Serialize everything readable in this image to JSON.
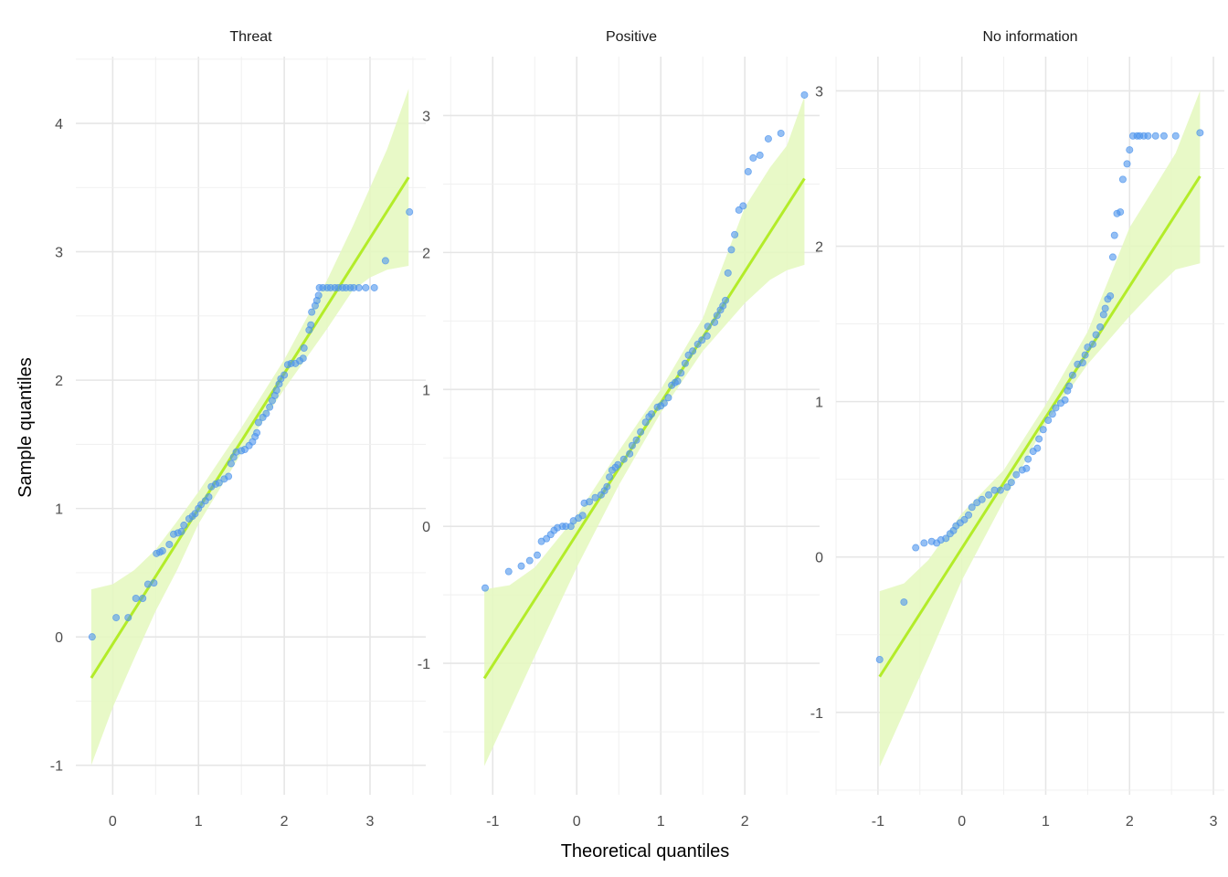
{
  "chart_data": {
    "type": "scatter",
    "subtype": "qq-plot faceted",
    "xlabel": "Theoretical quantiles",
    "ylabel": "Sample quantiles",
    "colors": {
      "points": "#4d94ec",
      "line": "#b3ec29",
      "band": "#e4f8bd",
      "grid": "#e6e6e6"
    },
    "grid": true,
    "panels": [
      {
        "title": "Threat",
        "xlim": [
          -0.43,
          3.65
        ],
        "ylim": [
          -1.23,
          4.52
        ],
        "xticks": [
          0,
          1,
          2,
          3
        ],
        "xtick_labels": [
          "0",
          "1",
          "2",
          "3"
        ],
        "yticks": [
          -1,
          0,
          1,
          2,
          3,
          4
        ],
        "ytick_labels": [
          "-1",
          "0",
          "1",
          "2",
          "3",
          "4"
        ],
        "line": {
          "x": [
            -0.25,
            3.45
          ],
          "slope": 1.054,
          "intercept": -0.056
        },
        "band": {
          "x": [
            -0.25,
            0,
            0.25,
            0.5,
            0.75,
            1,
            1.5,
            2,
            2.5,
            2.8,
            3,
            3.2,
            3.45
          ],
          "hi": [
            0.37,
            0.41,
            0.52,
            0.68,
            0.9,
            1.13,
            1.63,
            2.16,
            2.78,
            3.2,
            3.5,
            3.8,
            4.27
          ],
          "lo": [
            -1.0,
            -0.55,
            -0.17,
            0.2,
            0.52,
            0.88,
            1.43,
            1.93,
            2.4,
            2.7,
            2.8,
            2.86,
            2.89
          ]
        },
        "points": [
          [
            -0.24,
            0.0
          ],
          [
            0.04,
            0.15
          ],
          [
            0.18,
            0.15
          ],
          [
            0.27,
            0.3
          ],
          [
            0.35,
            0.3
          ],
          [
            0.41,
            0.41
          ],
          [
            0.48,
            0.42
          ],
          [
            0.51,
            0.65
          ],
          [
            0.55,
            0.66
          ],
          [
            0.58,
            0.67
          ],
          [
            0.66,
            0.72
          ],
          [
            0.71,
            0.8
          ],
          [
            0.76,
            0.81
          ],
          [
            0.8,
            0.82
          ],
          [
            0.83,
            0.87
          ],
          [
            0.89,
            0.92
          ],
          [
            0.93,
            0.94
          ],
          [
            0.96,
            0.96
          ],
          [
            1.0,
            1.0
          ],
          [
            1.03,
            1.03
          ],
          [
            1.08,
            1.06
          ],
          [
            1.12,
            1.09
          ],
          [
            1.15,
            1.17
          ],
          [
            1.2,
            1.19
          ],
          [
            1.24,
            1.2
          ],
          [
            1.3,
            1.23
          ],
          [
            1.35,
            1.25
          ],
          [
            1.38,
            1.35
          ],
          [
            1.41,
            1.4
          ],
          [
            1.44,
            1.44
          ],
          [
            1.5,
            1.45
          ],
          [
            1.54,
            1.46
          ],
          [
            1.59,
            1.49
          ],
          [
            1.63,
            1.52
          ],
          [
            1.66,
            1.56
          ],
          [
            1.68,
            1.59
          ],
          [
            1.7,
            1.67
          ],
          [
            1.75,
            1.71
          ],
          [
            1.79,
            1.74
          ],
          [
            1.83,
            1.79
          ],
          [
            1.86,
            1.84
          ],
          [
            1.89,
            1.88
          ],
          [
            1.91,
            1.92
          ],
          [
            1.94,
            1.97
          ],
          [
            1.96,
            2.01
          ],
          [
            2.0,
            2.04
          ],
          [
            2.04,
            2.12
          ],
          [
            2.08,
            2.13
          ],
          [
            2.13,
            2.13
          ],
          [
            2.18,
            2.15
          ],
          [
            2.22,
            2.17
          ],
          [
            2.23,
            2.25
          ],
          [
            2.29,
            2.39
          ],
          [
            2.31,
            2.43
          ],
          [
            2.32,
            2.53
          ],
          [
            2.36,
            2.58
          ],
          [
            2.38,
            2.62
          ],
          [
            2.4,
            2.66
          ],
          [
            2.41,
            2.72
          ],
          [
            2.45,
            2.72
          ],
          [
            2.5,
            2.72
          ],
          [
            2.54,
            2.72
          ],
          [
            2.59,
            2.72
          ],
          [
            2.63,
            2.72
          ],
          [
            2.68,
            2.72
          ],
          [
            2.72,
            2.72
          ],
          [
            2.77,
            2.72
          ],
          [
            2.81,
            2.72
          ],
          [
            2.87,
            2.72
          ],
          [
            2.95,
            2.72
          ],
          [
            3.05,
            2.72
          ],
          [
            3.18,
            2.93
          ],
          [
            3.46,
            3.31
          ]
        ]
      },
      {
        "title": "Positive",
        "xlim": [
          -1.59,
          2.89
        ],
        "ylim": [
          -1.96,
          3.43
        ],
        "xticks": [
          -1,
          0,
          1,
          2
        ],
        "xtick_labels": [
          "-1",
          "0",
          "1",
          "2"
        ],
        "yticks": [
          -1,
          0,
          1,
          2,
          3
        ],
        "ytick_labels": [
          "-1",
          "0",
          "1",
          "2",
          "3"
        ],
        "line": {
          "x": [
            -1.1,
            2.71
          ],
          "slope": 0.958,
          "intercept": -0.056
        },
        "band": {
          "x": [
            -1.1,
            -0.8,
            -0.5,
            0,
            0.5,
            1,
            1.5,
            2,
            2.3,
            2.5,
            2.71
          ],
          "hi": [
            -0.46,
            -0.43,
            -0.3,
            0.08,
            0.55,
            1.0,
            1.52,
            2.33,
            2.62,
            2.78,
            3.14
          ],
          "lo": [
            -1.75,
            -1.35,
            -0.95,
            -0.3,
            0.3,
            0.83,
            1.28,
            1.63,
            1.8,
            1.87,
            1.91
          ]
        },
        "points": [
          [
            -1.09,
            -0.45
          ],
          [
            -0.81,
            -0.33
          ],
          [
            -0.66,
            -0.29
          ],
          [
            -0.56,
            -0.25
          ],
          [
            -0.47,
            -0.21
          ],
          [
            -0.42,
            -0.11
          ],
          [
            -0.36,
            -0.09
          ],
          [
            -0.31,
            -0.06
          ],
          [
            -0.27,
            -0.03
          ],
          [
            -0.23,
            -0.01
          ],
          [
            -0.17,
            0.0
          ],
          [
            -0.13,
            0.0
          ],
          [
            -0.07,
            0.0
          ],
          [
            -0.04,
            0.04
          ],
          [
            0.02,
            0.06
          ],
          [
            0.07,
            0.08
          ],
          [
            0.09,
            0.17
          ],
          [
            0.15,
            0.18
          ],
          [
            0.22,
            0.21
          ],
          [
            0.29,
            0.23
          ],
          [
            0.33,
            0.26
          ],
          [
            0.36,
            0.29
          ],
          [
            0.39,
            0.36
          ],
          [
            0.42,
            0.41
          ],
          [
            0.46,
            0.43
          ],
          [
            0.49,
            0.45
          ],
          [
            0.56,
            0.49
          ],
          [
            0.63,
            0.53
          ],
          [
            0.66,
            0.59
          ],
          [
            0.71,
            0.63
          ],
          [
            0.76,
            0.69
          ],
          [
            0.82,
            0.76
          ],
          [
            0.86,
            0.8
          ],
          [
            0.89,
            0.82
          ],
          [
            0.96,
            0.87
          ],
          [
            1.0,
            0.88
          ],
          [
            1.04,
            0.9
          ],
          [
            1.09,
            0.94
          ],
          [
            1.13,
            1.03
          ],
          [
            1.17,
            1.05
          ],
          [
            1.2,
            1.06
          ],
          [
            1.24,
            1.12
          ],
          [
            1.29,
            1.19
          ],
          [
            1.33,
            1.25
          ],
          [
            1.38,
            1.28
          ],
          [
            1.44,
            1.33
          ],
          [
            1.49,
            1.36
          ],
          [
            1.55,
            1.39
          ],
          [
            1.56,
            1.46
          ],
          [
            1.64,
            1.49
          ],
          [
            1.67,
            1.54
          ],
          [
            1.71,
            1.58
          ],
          [
            1.74,
            1.61
          ],
          [
            1.77,
            1.65
          ],
          [
            1.8,
            1.85
          ],
          [
            1.84,
            2.02
          ],
          [
            1.88,
            2.13
          ],
          [
            1.93,
            2.31
          ],
          [
            1.98,
            2.34
          ],
          [
            2.04,
            2.59
          ],
          [
            2.1,
            2.69
          ],
          [
            2.18,
            2.71
          ],
          [
            2.28,
            2.83
          ],
          [
            2.43,
            2.87
          ],
          [
            2.71,
            3.15
          ]
        ]
      },
      {
        "title": "No information",
        "xlim": [
          -1.5,
          3.13
        ],
        "ylim": [
          -1.53,
          3.22
        ],
        "xticks": [
          -1,
          0,
          1,
          2,
          3
        ],
        "xtick_labels": [
          "-1",
          "0",
          "1",
          "2",
          "3"
        ],
        "yticks": [
          -1,
          0,
          1,
          2,
          3
        ],
        "ytick_labels": [
          "-1",
          "0",
          "1",
          "2",
          "3"
        ],
        "line": {
          "x": [
            -0.98,
            2.84
          ],
          "slope": 0.843,
          "intercept": 0.056
        },
        "band": {
          "x": [
            -0.98,
            -0.69,
            -0.4,
            0,
            0.5,
            1,
            1.5,
            2,
            2.3,
            2.55,
            2.84
          ],
          "hi": [
            -0.22,
            -0.17,
            -0.02,
            0.28,
            0.56,
            0.98,
            1.45,
            2.12,
            2.38,
            2.6,
            3.0
          ],
          "lo": [
            -1.35,
            -1.0,
            -0.65,
            -0.15,
            0.36,
            0.86,
            1.24,
            1.55,
            1.72,
            1.85,
            1.89
          ]
        },
        "points": [
          [
            -0.98,
            -0.66
          ],
          [
            -0.69,
            -0.29
          ],
          [
            -0.55,
            0.06
          ],
          [
            -0.45,
            0.09
          ],
          [
            -0.36,
            0.1
          ],
          [
            -0.3,
            0.09
          ],
          [
            -0.25,
            0.11
          ],
          [
            -0.19,
            0.12
          ],
          [
            -0.14,
            0.15
          ],
          [
            -0.1,
            0.17
          ],
          [
            -0.07,
            0.2
          ],
          [
            -0.02,
            0.22
          ],
          [
            0.03,
            0.24
          ],
          [
            0.08,
            0.27
          ],
          [
            0.12,
            0.32
          ],
          [
            0.18,
            0.35
          ],
          [
            0.24,
            0.37
          ],
          [
            0.32,
            0.4
          ],
          [
            0.39,
            0.43
          ],
          [
            0.46,
            0.43
          ],
          [
            0.54,
            0.45
          ],
          [
            0.59,
            0.48
          ],
          [
            0.65,
            0.53
          ],
          [
            0.72,
            0.56
          ],
          [
            0.77,
            0.57
          ],
          [
            0.79,
            0.63
          ],
          [
            0.85,
            0.68
          ],
          [
            0.9,
            0.7
          ],
          [
            0.92,
            0.76
          ],
          [
            0.97,
            0.82
          ],
          [
            1.03,
            0.88
          ],
          [
            1.08,
            0.92
          ],
          [
            1.12,
            0.96
          ],
          [
            1.18,
            0.99
          ],
          [
            1.23,
            1.01
          ],
          [
            1.26,
            1.07
          ],
          [
            1.28,
            1.1
          ],
          [
            1.32,
            1.17
          ],
          [
            1.38,
            1.24
          ],
          [
            1.44,
            1.25
          ],
          [
            1.47,
            1.3
          ],
          [
            1.5,
            1.35
          ],
          [
            1.56,
            1.37
          ],
          [
            1.6,
            1.43
          ],
          [
            1.65,
            1.48
          ],
          [
            1.69,
            1.56
          ],
          [
            1.71,
            1.6
          ],
          [
            1.74,
            1.66
          ],
          [
            1.77,
            1.68
          ],
          [
            1.8,
            1.93
          ],
          [
            1.82,
            2.07
          ],
          [
            1.85,
            2.21
          ],
          [
            1.89,
            2.22
          ],
          [
            1.92,
            2.43
          ],
          [
            1.97,
            2.53
          ],
          [
            2.0,
            2.62
          ],
          [
            2.04,
            2.71
          ],
          [
            2.09,
            2.71
          ],
          [
            2.12,
            2.71
          ],
          [
            2.17,
            2.71
          ],
          [
            2.22,
            2.71
          ],
          [
            2.31,
            2.71
          ],
          [
            2.41,
            2.71
          ],
          [
            2.55,
            2.71
          ],
          [
            2.84,
            2.73
          ]
        ]
      }
    ]
  }
}
